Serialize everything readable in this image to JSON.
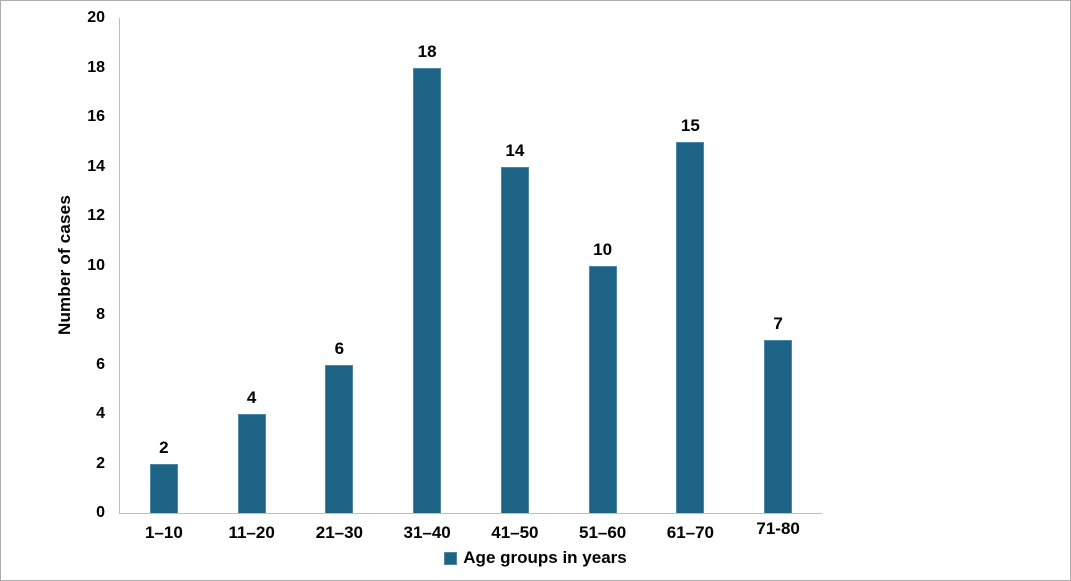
{
  "chart_data": {
    "type": "bar",
    "title": "",
    "categories": [
      "1–10",
      "11–20",
      "21–30",
      "31–40",
      "41–50",
      "51–60",
      "61–70",
      "71-80"
    ],
    "values": [
      2,
      4,
      6,
      18,
      14,
      10,
      15,
      7
    ],
    "data_labels_shown": true,
    "xlabel": "",
    "ylabel": "Number of cases",
    "ylim": [
      0,
      20
    ],
    "yticks": [
      0,
      2,
      4,
      6,
      8,
      10,
      12,
      14,
      16,
      18,
      20
    ],
    "grid": false,
    "legend": {
      "label": "Age groups in years",
      "position": "bottom-center",
      "marker": "square"
    },
    "colors": {
      "bar_fill": "#1C6385",
      "bar_border": "#4E86A3",
      "axis_line": "#bfbfbf",
      "text": "#000000"
    }
  }
}
